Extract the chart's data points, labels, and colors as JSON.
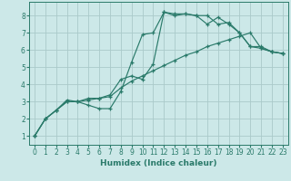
{
  "xlabel": "Humidex (Indice chaleur)",
  "background_color": "#cce8e8",
  "grid_color": "#aacaca",
  "line_color": "#2a7a6a",
  "xlim": [
    -0.5,
    23.5
  ],
  "ylim": [
    0.5,
    8.8
  ],
  "xticks": [
    0,
    1,
    2,
    3,
    4,
    5,
    6,
    7,
    8,
    9,
    10,
    11,
    12,
    13,
    14,
    15,
    16,
    17,
    18,
    19,
    20,
    21,
    22,
    23
  ],
  "yticks": [
    1,
    2,
    3,
    4,
    5,
    6,
    7,
    8
  ],
  "line1_x": [
    0,
    1,
    2,
    3,
    4,
    5,
    6,
    7,
    8,
    9,
    10,
    11,
    12,
    13,
    14,
    15,
    16,
    17,
    18,
    19,
    20,
    21,
    22,
    23
  ],
  "line1_y": [
    1.0,
    2.0,
    2.5,
    3.0,
    3.0,
    2.8,
    2.6,
    2.6,
    3.6,
    5.3,
    6.9,
    7.0,
    8.2,
    8.1,
    8.1,
    8.0,
    7.5,
    7.9,
    7.5,
    7.0,
    6.2,
    6.2,
    5.9,
    5.8
  ],
  "line2_x": [
    0,
    1,
    2,
    3,
    4,
    5,
    6,
    7,
    8,
    9,
    10,
    11,
    12,
    13,
    14,
    15,
    16,
    17,
    18,
    19,
    20,
    21,
    22,
    23
  ],
  "line2_y": [
    1.0,
    2.0,
    2.5,
    3.1,
    3.0,
    3.2,
    3.2,
    3.4,
    4.3,
    4.5,
    4.3,
    5.2,
    8.2,
    8.0,
    8.1,
    8.0,
    8.0,
    7.5,
    7.6,
    7.0,
    6.2,
    6.1,
    5.9,
    5.8
  ],
  "line3_x": [
    0,
    1,
    2,
    3,
    4,
    5,
    6,
    7,
    8,
    9,
    10,
    11,
    12,
    13,
    14,
    15,
    16,
    17,
    18,
    19,
    20,
    21,
    22,
    23
  ],
  "line3_y": [
    1.0,
    2.0,
    2.5,
    3.0,
    3.0,
    3.1,
    3.2,
    3.3,
    3.8,
    4.2,
    4.5,
    4.8,
    5.1,
    5.4,
    5.7,
    5.9,
    6.2,
    6.4,
    6.6,
    6.8,
    7.0,
    6.1,
    5.9,
    5.8
  ]
}
